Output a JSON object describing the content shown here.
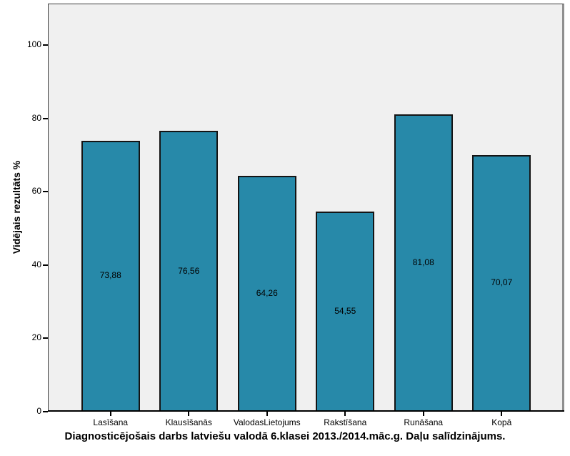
{
  "chart_data": {
    "type": "bar",
    "title": "Diagnosticējošais darbs latviešu valodā 6.klasei 2013./2014.māc.g. Daļu salīdzinājums.",
    "ylabel": "Vidējais rezultāts %",
    "xlabel": "",
    "categories": [
      "Lasīšana",
      "Klausīšanās",
      "ValodasLietojums",
      "Rakstīšana",
      "Runāšana",
      "Kopā"
    ],
    "values": [
      73.88,
      76.56,
      64.26,
      54.55,
      81.08,
      70.07
    ],
    "value_labels": [
      "73,88",
      "76,56",
      "64,26",
      "54,55",
      "81,08",
      "70,07"
    ],
    "yticks": [
      0,
      20,
      40,
      60,
      80,
      100
    ],
    "ylim": [
      0,
      111.3
    ],
    "grid": false,
    "legend_position": "none",
    "colors": {
      "bar_fill": "#2789a9",
      "bar_border": "#141414",
      "plot_background": "#f0f0f0",
      "outer_background": "#ffffff",
      "frame_shadow": "#8f8f8f",
      "axis": "#000000"
    }
  }
}
